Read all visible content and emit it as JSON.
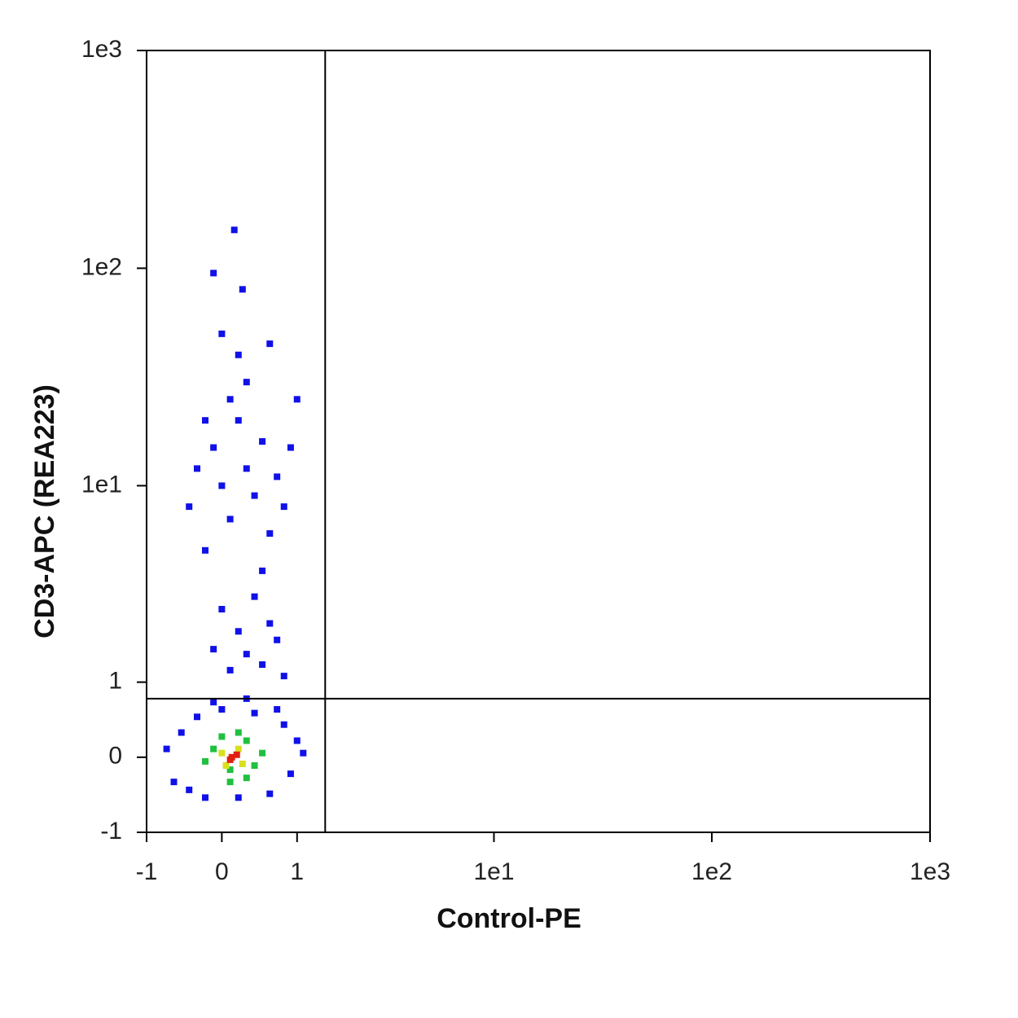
{
  "chart_data": {
    "type": "scatter",
    "x_label": "Control-PE",
    "y_label": "CD3-APC (REA223)",
    "xscale": "biexponential",
    "yscale": "biexponential",
    "xlim": [
      -1,
      1000
    ],
    "ylim": [
      -1,
      1000
    ],
    "xticks": [
      -1,
      0,
      1,
      {
        "value": 10,
        "label": "1e1"
      },
      {
        "value": 100,
        "label": "1e2"
      },
      {
        "value": 1000,
        "label": "1e3"
      }
    ],
    "yticks": [
      -1,
      0,
      1,
      {
        "value": 10,
        "label": "1e1"
      },
      {
        "value": 100,
        "label": "1e2"
      },
      {
        "value": 1000,
        "label": "1e3"
      }
    ],
    "gates": {
      "x": 1.5,
      "y": 0.75
    },
    "series": [
      {
        "color": "#1010e8",
        "x": [
          -0.7,
          -0.6,
          -0.5,
          -0.4,
          -0.3,
          -0.2,
          0,
          0.2,
          0.4,
          0.6,
          0.8,
          0.9,
          1.0,
          1.1,
          0.7,
          -0.1,
          0.3,
          0.1,
          0.3,
          0.5,
          0.2,
          0.6,
          0,
          0.4,
          0.7,
          -0.1,
          0.8,
          -0.4,
          -0.3,
          -0.2,
          -0.1,
          0,
          0.1,
          0.2,
          0.3,
          0.4,
          0.5,
          0.6,
          0.7,
          0.8,
          0.1,
          0.3,
          0.5,
          -0.2,
          0.2,
          0.6,
          0.15,
          -0.1,
          0.25,
          1.0,
          0.9,
          0.0
        ],
        "y": [
          0.1,
          -0.3,
          0.3,
          -0.4,
          0.5,
          -0.5,
          0.6,
          -0.5,
          0.55,
          -0.45,
          0.4,
          -0.2,
          0.2,
          0.05,
          0.6,
          0.7,
          0.75,
          1.2,
          1.5,
          1.3,
          2,
          2.2,
          2.6,
          3,
          1.8,
          1.6,
          1.1,
          8,
          12,
          5,
          15,
          10,
          7,
          20,
          12,
          9,
          16,
          6,
          11,
          8,
          25,
          30,
          4,
          20,
          40,
          45,
          150,
          95,
          80,
          25,
          15,
          50
        ]
      },
      {
        "color": "#20c040",
        "x": [
          -0.1,
          0.1,
          0.3,
          0.4,
          0.0,
          0.2,
          -0.2,
          0.5,
          0.1,
          0.3
        ],
        "y": [
          0.1,
          -0.15,
          0.2,
          -0.1,
          0.25,
          0.3,
          -0.05,
          0.05,
          -0.3,
          -0.25
        ]
      },
      {
        "color": "#d8e020",
        "x": [
          0.0,
          0.2,
          0.25,
          0.05
        ],
        "y": [
          0.05,
          0.1,
          -0.08,
          -0.1
        ]
      },
      {
        "color": "#e02010",
        "x": [
          0.12,
          0.18,
          0.1
        ],
        "y": [
          0.0,
          0.03,
          -0.03
        ]
      }
    ]
  }
}
